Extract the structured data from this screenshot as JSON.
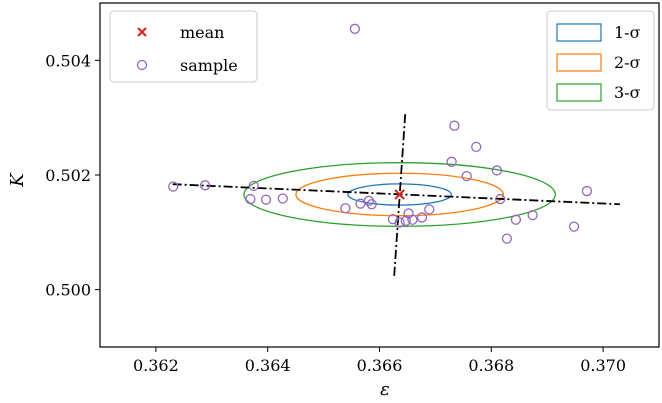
{
  "chart_data": {
    "type": "scatter",
    "xlabel": "ε",
    "ylabel": "K",
    "xlim": [
      0.361,
      0.371
    ],
    "ylim": [
      0.499,
      0.505
    ],
    "x_ticks": [
      {
        "value": 0.362,
        "label": "0.362"
      },
      {
        "value": 0.364,
        "label": "0.364"
      },
      {
        "value": 0.366,
        "label": "0.366"
      },
      {
        "value": 0.368,
        "label": "0.368"
      },
      {
        "value": 0.37,
        "label": "0.370"
      }
    ],
    "y_ticks": [
      {
        "value": 0.5,
        "label": "0.500"
      },
      {
        "value": 0.502,
        "label": "0.502"
      },
      {
        "value": 0.504,
        "label": "0.504"
      }
    ],
    "grid": false,
    "mean": {
      "name": "mean",
      "x": 0.36636,
      "y": 0.50166,
      "color": "#d62728",
      "marker": "x"
    },
    "samples": {
      "name": "sample",
      "color": "#9467bd",
      "marker": "circle-open",
      "points": [
        [
          0.36556,
          0.50455
        ],
        [
          0.36231,
          0.5018
        ],
        [
          0.36288,
          0.50182
        ],
        [
          0.36375,
          0.50181
        ],
        [
          0.36369,
          0.50158
        ],
        [
          0.36397,
          0.50157
        ],
        [
          0.36427,
          0.50159
        ],
        [
          0.36539,
          0.50142
        ],
        [
          0.36566,
          0.5015
        ],
        [
          0.36581,
          0.50155
        ],
        [
          0.36586,
          0.50149
        ],
        [
          0.36624,
          0.50123
        ],
        [
          0.36636,
          0.50117
        ],
        [
          0.36647,
          0.5012
        ],
        [
          0.36652,
          0.50133
        ],
        [
          0.36659,
          0.50122
        ],
        [
          0.36676,
          0.50126
        ],
        [
          0.36689,
          0.5014
        ],
        [
          0.36729,
          0.50223
        ],
        [
          0.36734,
          0.50286
        ],
        [
          0.36756,
          0.50198
        ],
        [
          0.36773,
          0.50249
        ],
        [
          0.3681,
          0.50208
        ],
        [
          0.36816,
          0.50158
        ],
        [
          0.36828,
          0.50089
        ],
        [
          0.36844,
          0.50122
        ],
        [
          0.36874,
          0.5013
        ],
        [
          0.36948,
          0.5011
        ],
        [
          0.36971,
          0.50172
        ]
      ]
    },
    "ellipses": [
      {
        "name": "1-σ",
        "color": "#1f77b4",
        "rx": 0.000925,
        "ry": 0.000185
      },
      {
        "name": "2-σ",
        "color": "#ff7f0e",
        "rx": 0.001855,
        "ry": 0.00037
      },
      {
        "name": "3-σ",
        "color": "#2ca02c",
        "rx": 0.002785,
        "ry": 0.000555
      }
    ],
    "principal_axes": [
      {
        "from": [
          0.3623,
          0.50184
        ],
        "to": [
          0.3703,
          0.50149
        ]
      },
      {
        "from": [
          0.36646,
          0.50306
        ],
        "to": [
          0.36626,
          0.5002
        ]
      }
    ],
    "legend_left": {
      "placement": "top-left",
      "entries": [
        "mean",
        "sample"
      ]
    },
    "legend_right": {
      "placement": "top-right",
      "entries": [
        "1-σ",
        "2-σ",
        "3-σ"
      ]
    }
  }
}
